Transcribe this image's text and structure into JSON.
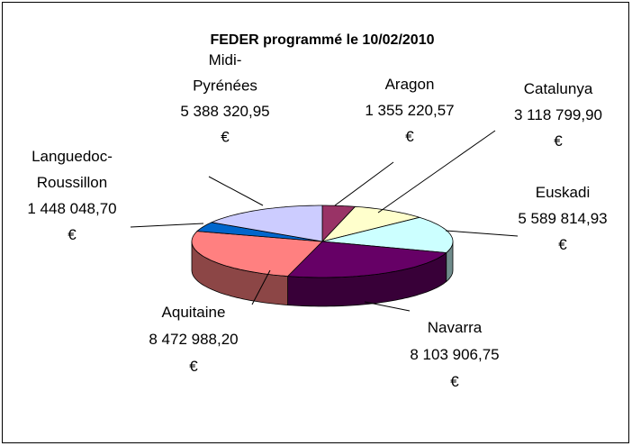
{
  "chart_data": {
    "type": "pie3d",
    "title": "FEDER programmé le 10/02/2010",
    "categories": [
      "Aragon",
      "Catalunya",
      "Euskadi",
      "Navarra",
      "Aquitaine",
      "Languedoc-Roussillon",
      "Midi-Pyrénées"
    ],
    "values": [
      1355220.57,
      3118799.9,
      5589814.93,
      8103906.75,
      8472988.2,
      1448048.7,
      5388320.95
    ],
    "value_labels": [
      "1 355 220,57 €",
      "3 118 799,90 €",
      "5 589 814,93 €",
      "8 103 906,75 €",
      "8 472 988,20 €",
      "1 448 048,70 €",
      "5 388 320,95 €"
    ],
    "colors": [
      "#993366",
      "#FFFFCC",
      "#CCFFFF",
      "#660066",
      "#FF8080",
      "#0066CC",
      "#CCCCFF"
    ]
  }
}
